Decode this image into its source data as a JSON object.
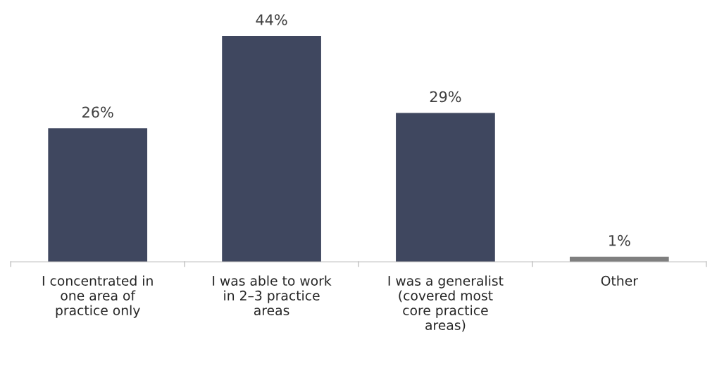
{
  "chart_data": {
    "type": "bar",
    "categories": [
      "I concentrated in\none area of\npractice only",
      "I was able to work\nin 2–3 practice\nareas",
      "I was a generalist\n(covered most\ncore practice\nareas)",
      "Other"
    ],
    "values": [
      26,
      44,
      29,
      1
    ],
    "colors": [
      "#3f475f",
      "#3f475f",
      "#3f475f",
      "#7f7f7f"
    ],
    "value_labels": [
      "26%",
      "44%",
      "29%",
      "1%"
    ]
  }
}
